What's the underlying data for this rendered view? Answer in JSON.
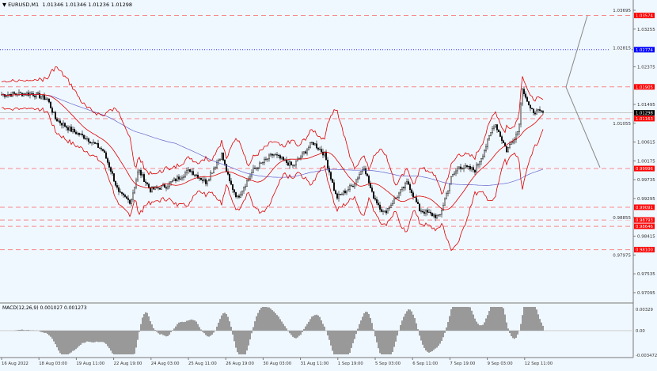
{
  "header": {
    "symbol": "EURUSD,M1",
    "ohlc": "1.01346 1.01346 1.01236 1.01298",
    "collapse_icon": "triangle-down-icon"
  },
  "price_axis": {
    "ticks": [
      "1.03695",
      "1.03255",
      "1.02815",
      "1.02375",
      "1.01495",
      "1.01055",
      "1.00615",
      "1.00175",
      "0.99735",
      "0.99295",
      "0.98855",
      "0.98415",
      "0.97975",
      "0.97535",
      "0.97095"
    ],
    "current_price": "1.01298"
  },
  "levels": [
    {
      "price": 1.03574,
      "label": "1.03574",
      "color": "#ff0000",
      "style": "dash"
    },
    {
      "price": 1.02774,
      "label": "1.02774",
      "color": "#0000ff",
      "style": "dot"
    },
    {
      "price": 1.01905,
      "label": "1.01905",
      "color": "#ff0000",
      "style": "dash"
    },
    {
      "price": 1.01163,
      "label": "1.01163",
      "color": "#ff0000",
      "style": "dash"
    },
    {
      "price": 0.99996,
      "label": "0.99996",
      "color": "#ff0000",
      "style": "dash"
    },
    {
      "price": 0.99091,
      "label": "0.99091",
      "color": "#ff0000",
      "style": "dash"
    },
    {
      "price": 0.98793,
      "label": "0.98793",
      "color": "#ff0000",
      "style": "dash"
    },
    {
      "price": 0.98646,
      "label": "0.98646",
      "color": "#ff0000",
      "style": "dash"
    },
    {
      "price": 0.981,
      "label": "0.98100",
      "color": "#ff0000",
      "style": "dash"
    }
  ],
  "price_path": [
    [
      0,
      1.0172
    ],
    [
      40,
      1.0175
    ],
    [
      60,
      1.0162
    ],
    [
      70,
      1.0116
    ],
    [
      90,
      1.0089
    ],
    [
      110,
      1.007
    ],
    [
      130,
      1.0042
    ],
    [
      140,
      0.9996
    ],
    [
      150,
      0.9941
    ],
    [
      165,
      0.9922
    ],
    [
      175,
      0.9996
    ],
    [
      190,
      0.995
    ],
    [
      210,
      0.9959
    ],
    [
      240,
      0.9996
    ],
    [
      260,
      0.9968
    ],
    [
      280,
      1.0033
    ],
    [
      290,
      0.9968
    ],
    [
      300,
      0.9931
    ],
    [
      320,
      0.9996
    ],
    [
      345,
      1.0033
    ],
    [
      370,
      1.0005
    ],
    [
      395,
      1.0061
    ],
    [
      410,
      1.0033
    ],
    [
      425,
      0.9931
    ],
    [
      445,
      0.9959
    ],
    [
      460,
      1.0005
    ],
    [
      470,
      0.9941
    ],
    [
      485,
      0.9894
    ],
    [
      500,
      0.9931
    ],
    [
      515,
      0.9968
    ],
    [
      530,
      0.9903
    ],
    [
      555,
      0.9885
    ],
    [
      570,
      0.9977
    ],
    [
      580,
      1.0005
    ],
    [
      600,
      0.9996
    ],
    [
      610,
      1.0033
    ],
    [
      625,
      1.0107
    ],
    [
      640,
      1.0042
    ],
    [
      655,
      1.0089
    ],
    [
      660,
      1.019
    ],
    [
      670,
      1.0135
    ],
    [
      685,
      1.013
    ]
  ],
  "projection": {
    "from": 1.019,
    "up": 1.0357,
    "down": 1.0002
  },
  "macd": {
    "label": "MACD(12,26,9) 0.001027 0.001273",
    "ticks": [
      "0.00329",
      "0.00",
      "-0.003472"
    ]
  },
  "time_axis": [
    "16 Aug 2022",
    "18 Aug 03:00",
    "19 Aug 11:00",
    "22 Aug 19:00",
    "24 Aug 03:00",
    "25 Aug 11:00",
    "26 Aug 19:00",
    "30 Aug 03:00",
    "31 Aug 11:00",
    "1 Sep 19:00",
    "5 Sep 03:00",
    "6 Sep 11:00",
    "7 Sep 19:00",
    "9 Sep 03:00",
    "12 Sep 11:00"
  ]
}
